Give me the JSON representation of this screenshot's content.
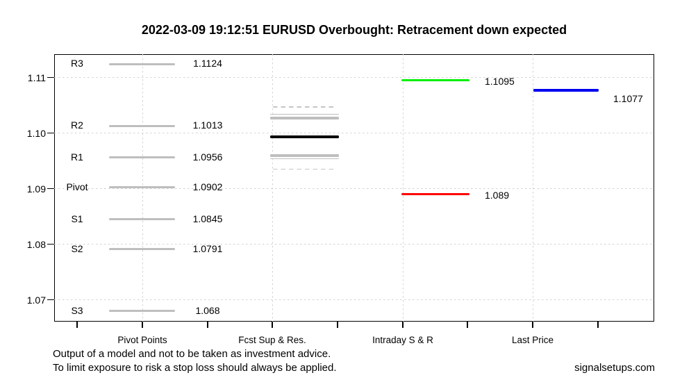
{
  "title": "2022-03-09 19:12:51 EURUSD Overbought: Retracement down expected",
  "footer": {
    "line1": "Output of a model and not to be taken as investment advice.",
    "line2": "To limit exposure to risk a stop loss should always be applied.",
    "brand": "signalsetups.com"
  },
  "chart_data": {
    "type": "line",
    "subtype": "horizontal-price-level-segments",
    "title": "2022-03-09 19:12:51 EURUSD Overbought: Retracement down expected",
    "grid": true,
    "ylim": [
      1.066,
      1.1143
    ],
    "y_axis": {
      "ticks": [
        {
          "label": "1.11",
          "value": 1.11
        },
        {
          "label": "1.10",
          "value": 1.1
        },
        {
          "label": "1.09",
          "value": 1.09
        },
        {
          "label": "1.08",
          "value": 1.08
        },
        {
          "label": "1.07",
          "value": 1.07
        }
      ]
    },
    "x_axis": {
      "categories": [
        "Pivot Points",
        "Fcst Sup & Res.",
        "Intraday S & R",
        "Last Price"
      ]
    },
    "pivot_points": {
      "category": "Pivot Points",
      "line_color": "#bebebe",
      "levels": [
        {
          "name": "R3",
          "value": 1.1124,
          "value_label": "1.1124"
        },
        {
          "name": "R2",
          "value": 1.1013,
          "value_label": "1.1013"
        },
        {
          "name": "R1",
          "value": 1.0956,
          "value_label": "1.0956"
        },
        {
          "name": "Pivot",
          "value": 1.0902,
          "value_label": "1.0902"
        },
        {
          "name": "S1",
          "value": 1.0845,
          "value_label": "1.0845"
        },
        {
          "name": "S2",
          "value": 1.0791,
          "value_label": "1.0791"
        },
        {
          "name": "S3",
          "value": 1.068,
          "value_label": "1.068"
        }
      ]
    },
    "forecast_sup_res": {
      "category": "Fcst Sup & Res.",
      "levels": [
        {
          "style": "dashed",
          "value": 1.1047,
          "color": "#c6c6c6"
        },
        {
          "style": "thin",
          "value": 1.1034,
          "color": "#bebebe"
        },
        {
          "style": "thick",
          "value": 1.1027,
          "color": "#bebebe"
        },
        {
          "style": "black-thick",
          "value": 1.0993,
          "color": "#000000"
        },
        {
          "style": "thick",
          "value": 1.0959,
          "color": "#bebebe"
        },
        {
          "style": "thin",
          "value": 1.0954,
          "color": "#bebebe"
        },
        {
          "style": "dashed",
          "value": 1.0935,
          "color": "#c6c6c6"
        }
      ]
    },
    "intraday_sr": {
      "category": "Intraday S & R",
      "levels": [
        {
          "role": "resistance",
          "value": 1.1095,
          "value_label": "1.1095",
          "color": "#00ee00"
        },
        {
          "role": "support",
          "value": 1.089,
          "value_label": "1.089",
          "color": "#ff0000"
        }
      ]
    },
    "last_price": {
      "category": "Last Price",
      "value": 1.1077,
      "value_label": "1.1077",
      "color": "#0000f0"
    },
    "colors": {
      "grid": "#d3d3d3",
      "pivot_gray": "#bebebe",
      "intraday_resistance": "#00ee00",
      "intraday_support": "#ff0000",
      "last_price_blue": "#0000f0"
    }
  }
}
